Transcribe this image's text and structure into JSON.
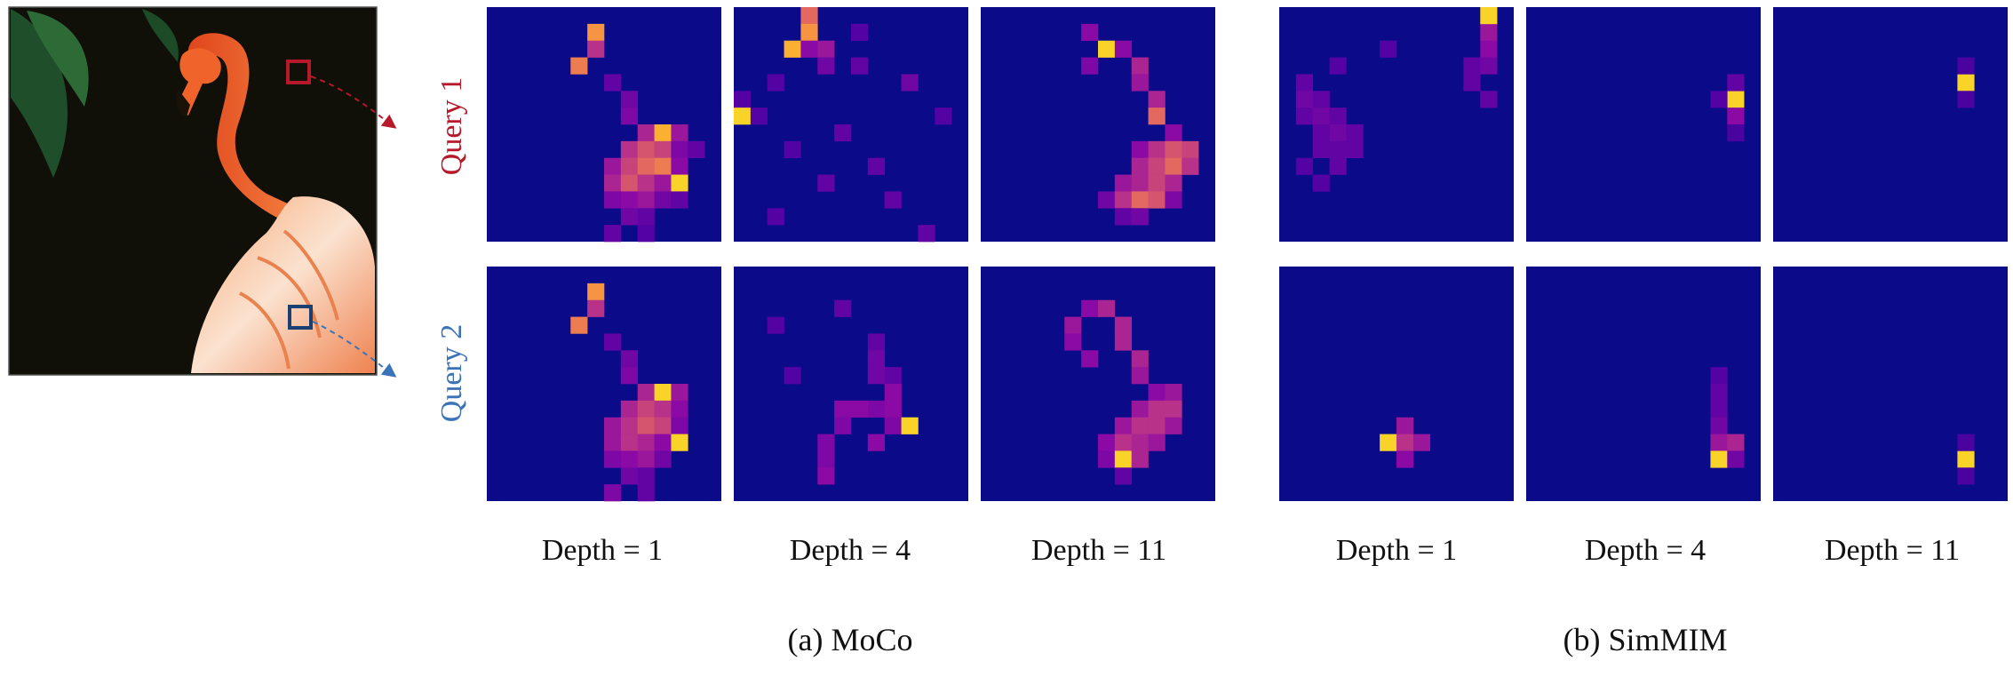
{
  "colors": {
    "query1": "#b5192a",
    "query2": "#3a73b8",
    "map_background": "#0b0b8a"
  },
  "row_labels": [
    "Query 1",
    "Query 2"
  ],
  "groups": [
    {
      "caption": "(a) MoCo",
      "columns": [
        {
          "label": "Depth = 1"
        },
        {
          "label": "Depth = 4"
        },
        {
          "label": "Depth = 11"
        }
      ]
    },
    {
      "caption": "(b) SimMIM",
      "columns": [
        {
          "label": "Depth = 1"
        },
        {
          "label": "Depth = 4"
        },
        {
          "label": "Depth = 11"
        }
      ]
    }
  ],
  "chart_data": {
    "type": "heatmap",
    "grid": [
      14,
      14
    ],
    "colormap": "plasma",
    "rows": [
      "Query 1",
      "Query 2"
    ],
    "methods": [
      "(a) MoCo",
      "(b) SimMIM"
    ],
    "depths": [
      "Depth = 1",
      "Depth = 4",
      "Depth = 11"
    ],
    "maps": [
      [
        [
          {
            "r": 1,
            "c": 6,
            "v": 0.85
          },
          {
            "r": 2,
            "c": 6,
            "v": 0.6
          },
          {
            "r": 3,
            "c": 5,
            "v": 0.8
          },
          {
            "r": 4,
            "c": 7,
            "v": 0.3
          },
          {
            "r": 5,
            "c": 8,
            "v": 0.35
          },
          {
            "r": 6,
            "c": 8,
            "v": 0.4
          },
          {
            "r": 7,
            "c": 9,
            "v": 0.55
          },
          {
            "r": 7,
            "c": 10,
            "v": 0.9
          },
          {
            "r": 7,
            "c": 11,
            "v": 0.5
          },
          {
            "r": 8,
            "c": 8,
            "v": 0.6
          },
          {
            "r": 8,
            "c": 9,
            "v": 0.7
          },
          {
            "r": 8,
            "c": 10,
            "v": 0.65
          },
          {
            "r": 8,
            "c": 11,
            "v": 0.4
          },
          {
            "r": 8,
            "c": 12,
            "v": 0.3
          },
          {
            "r": 9,
            "c": 7,
            "v": 0.5
          },
          {
            "r": 9,
            "c": 8,
            "v": 0.65
          },
          {
            "r": 9,
            "c": 9,
            "v": 0.75
          },
          {
            "r": 9,
            "c": 10,
            "v": 0.8
          },
          {
            "r": 9,
            "c": 11,
            "v": 0.45
          },
          {
            "r": 10,
            "c": 7,
            "v": 0.55
          },
          {
            "r": 10,
            "c": 8,
            "v": 0.7
          },
          {
            "r": 10,
            "c": 9,
            "v": 0.6
          },
          {
            "r": 10,
            "c": 10,
            "v": 0.5
          },
          {
            "r": 10,
            "c": 11,
            "v": 0.95
          },
          {
            "r": 11,
            "c": 7,
            "v": 0.4
          },
          {
            "r": 11,
            "c": 8,
            "v": 0.45
          },
          {
            "r": 11,
            "c": 9,
            "v": 0.5
          },
          {
            "r": 11,
            "c": 10,
            "v": 0.35
          },
          {
            "r": 11,
            "c": 11,
            "v": 0.3
          },
          {
            "r": 12,
            "c": 8,
            "v": 0.35
          },
          {
            "r": 12,
            "c": 9,
            "v": 0.3
          },
          {
            "r": 13,
            "c": 7,
            "v": 0.3
          },
          {
            "r": 13,
            "c": 9,
            "v": 0.25
          }
        ],
        [
          {
            "r": 0,
            "c": 4,
            "v": 0.75
          },
          {
            "r": 1,
            "c": 4,
            "v": 0.85
          },
          {
            "r": 2,
            "c": 3,
            "v": 0.9
          },
          {
            "r": 2,
            "c": 4,
            "v": 0.45
          },
          {
            "r": 2,
            "c": 5,
            "v": 0.5
          },
          {
            "r": 3,
            "c": 5,
            "v": 0.35
          },
          {
            "r": 3,
            "c": 7,
            "v": 0.3
          },
          {
            "r": 4,
            "c": 10,
            "v": 0.35
          },
          {
            "r": 4,
            "c": 2,
            "v": 0.25
          },
          {
            "r": 5,
            "c": 0,
            "v": 0.25
          },
          {
            "r": 6,
            "c": 0,
            "v": 0.95
          },
          {
            "r": 6,
            "c": 1,
            "v": 0.25
          },
          {
            "r": 7,
            "c": 6,
            "v": 0.3
          },
          {
            "r": 8,
            "c": 3,
            "v": 0.25
          },
          {
            "r": 9,
            "c": 8,
            "v": 0.3
          },
          {
            "r": 10,
            "c": 5,
            "v": 0.3
          },
          {
            "r": 11,
            "c": 9,
            "v": 0.3
          },
          {
            "r": 12,
            "c": 2,
            "v": 0.25
          },
          {
            "r": 13,
            "c": 11,
            "v": 0.3
          },
          {
            "r": 1,
            "c": 7,
            "v": 0.25
          },
          {
            "r": 6,
            "c": 12,
            "v": 0.25
          }
        ],
        [
          {
            "r": 1,
            "c": 6,
            "v": 0.45
          },
          {
            "r": 2,
            "c": 7,
            "v": 0.95
          },
          {
            "r": 2,
            "c": 8,
            "v": 0.45
          },
          {
            "r": 3,
            "c": 6,
            "v": 0.4
          },
          {
            "r": 3,
            "c": 9,
            "v": 0.55
          },
          {
            "r": 4,
            "c": 9,
            "v": 0.5
          },
          {
            "r": 5,
            "c": 10,
            "v": 0.55
          },
          {
            "r": 6,
            "c": 10,
            "v": 0.75
          },
          {
            "r": 7,
            "c": 11,
            "v": 0.45
          },
          {
            "r": 8,
            "c": 9,
            "v": 0.45
          },
          {
            "r": 8,
            "c": 10,
            "v": 0.6
          },
          {
            "r": 8,
            "c": 11,
            "v": 0.7
          },
          {
            "r": 8,
            "c": 12,
            "v": 0.65
          },
          {
            "r": 9,
            "c": 9,
            "v": 0.55
          },
          {
            "r": 9,
            "c": 10,
            "v": 0.65
          },
          {
            "r": 9,
            "c": 11,
            "v": 0.75
          },
          {
            "r": 9,
            "c": 12,
            "v": 0.6
          },
          {
            "r": 10,
            "c": 8,
            "v": 0.5
          },
          {
            "r": 10,
            "c": 9,
            "v": 0.55
          },
          {
            "r": 10,
            "c": 10,
            "v": 0.65
          },
          {
            "r": 10,
            "c": 11,
            "v": 0.55
          },
          {
            "r": 11,
            "c": 7,
            "v": 0.35
          },
          {
            "r": 11,
            "c": 8,
            "v": 0.6
          },
          {
            "r": 11,
            "c": 9,
            "v": 0.75
          },
          {
            "r": 11,
            "c": 10,
            "v": 0.7
          },
          {
            "r": 11,
            "c": 11,
            "v": 0.4
          },
          {
            "r": 12,
            "c": 8,
            "v": 0.3
          },
          {
            "r": 12,
            "c": 9,
            "v": 0.35
          }
        ]
      ],
      [
        [
          {
            "r": 1,
            "c": 12,
            "v": 0.5
          },
          {
            "r": 0,
            "c": 12,
            "v": 0.95
          },
          {
            "r": 2,
            "c": 12,
            "v": 0.45
          },
          {
            "r": 3,
            "c": 11,
            "v": 0.3
          },
          {
            "r": 3,
            "c": 12,
            "v": 0.35
          },
          {
            "r": 4,
            "c": 11,
            "v": 0.3
          },
          {
            "r": 5,
            "c": 12,
            "v": 0.3
          },
          {
            "r": 2,
            "c": 6,
            "v": 0.25
          },
          {
            "r": 3,
            "c": 3,
            "v": 0.25
          },
          {
            "r": 4,
            "c": 1,
            "v": 0.3
          },
          {
            "r": 5,
            "c": 1,
            "v": 0.35
          },
          {
            "r": 5,
            "c": 2,
            "v": 0.3
          },
          {
            "r": 6,
            "c": 1,
            "v": 0.3
          },
          {
            "r": 6,
            "c": 2,
            "v": 0.35
          },
          {
            "r": 6,
            "c": 3,
            "v": 0.3
          },
          {
            "r": 7,
            "c": 2,
            "v": 0.3
          },
          {
            "r": 7,
            "c": 3,
            "v": 0.35
          },
          {
            "r": 7,
            "c": 4,
            "v": 0.3
          },
          {
            "r": 8,
            "c": 2,
            "v": 0.3
          },
          {
            "r": 8,
            "c": 3,
            "v": 0.3
          },
          {
            "r": 8,
            "c": 4,
            "v": 0.3
          },
          {
            "r": 9,
            "c": 1,
            "v": 0.25
          },
          {
            "r": 9,
            "c": 3,
            "v": 0.3
          },
          {
            "r": 10,
            "c": 2,
            "v": 0.25
          }
        ],
        [
          {
            "r": 5,
            "c": 12,
            "v": 0.95
          },
          {
            "r": 6,
            "c": 12,
            "v": 0.45
          },
          {
            "r": 4,
            "c": 12,
            "v": 0.3
          },
          {
            "r": 5,
            "c": 11,
            "v": 0.25
          },
          {
            "r": 7,
            "c": 12,
            "v": 0.22
          }
        ],
        [
          {
            "r": 4,
            "c": 11,
            "v": 0.95
          },
          {
            "r": 3,
            "c": 11,
            "v": 0.22
          },
          {
            "r": 5,
            "c": 11,
            "v": 0.22
          }
        ]
      ]
    ],
    "maps_query2": [
      [
        [
          {
            "r": 1,
            "c": 6,
            "v": 0.85
          },
          {
            "r": 2,
            "c": 6,
            "v": 0.6
          },
          {
            "r": 3,
            "c": 5,
            "v": 0.8
          },
          {
            "r": 4,
            "c": 7,
            "v": 0.3
          },
          {
            "r": 5,
            "c": 8,
            "v": 0.35
          },
          {
            "r": 6,
            "c": 8,
            "v": 0.4
          },
          {
            "r": 7,
            "c": 9,
            "v": 0.55
          },
          {
            "r": 7,
            "c": 10,
            "v": 0.95
          },
          {
            "r": 7,
            "c": 11,
            "v": 0.5
          },
          {
            "r": 8,
            "c": 8,
            "v": 0.55
          },
          {
            "r": 8,
            "c": 9,
            "v": 0.65
          },
          {
            "r": 8,
            "c": 10,
            "v": 0.6
          },
          {
            "r": 8,
            "c": 11,
            "v": 0.45
          },
          {
            "r": 9,
            "c": 7,
            "v": 0.5
          },
          {
            "r": 9,
            "c": 8,
            "v": 0.6
          },
          {
            "r": 9,
            "c": 9,
            "v": 0.7
          },
          {
            "r": 9,
            "c": 10,
            "v": 0.65
          },
          {
            "r": 9,
            "c": 11,
            "v": 0.4
          },
          {
            "r": 10,
            "c": 7,
            "v": 0.5
          },
          {
            "r": 10,
            "c": 8,
            "v": 0.6
          },
          {
            "r": 10,
            "c": 9,
            "v": 0.55
          },
          {
            "r": 10,
            "c": 10,
            "v": 0.45
          },
          {
            "r": 10,
            "c": 11,
            "v": 0.95
          },
          {
            "r": 11,
            "c": 7,
            "v": 0.4
          },
          {
            "r": 11,
            "c": 8,
            "v": 0.45
          },
          {
            "r": 11,
            "c": 9,
            "v": 0.5
          },
          {
            "r": 11,
            "c": 10,
            "v": 0.35
          },
          {
            "r": 12,
            "c": 8,
            "v": 0.35
          },
          {
            "r": 12,
            "c": 9,
            "v": 0.3
          },
          {
            "r": 13,
            "c": 7,
            "v": 0.4
          },
          {
            "r": 13,
            "c": 9,
            "v": 0.3
          }
        ],
        [
          {
            "r": 2,
            "c": 6,
            "v": 0.3
          },
          {
            "r": 4,
            "c": 8,
            "v": 0.3
          },
          {
            "r": 5,
            "c": 8,
            "v": 0.35
          },
          {
            "r": 6,
            "c": 8,
            "v": 0.35
          },
          {
            "r": 6,
            "c": 9,
            "v": 0.3
          },
          {
            "r": 7,
            "c": 9,
            "v": 0.45
          },
          {
            "r": 8,
            "c": 6,
            "v": 0.45
          },
          {
            "r": 8,
            "c": 7,
            "v": 0.45
          },
          {
            "r": 8,
            "c": 8,
            "v": 0.4
          },
          {
            "r": 8,
            "c": 9,
            "v": 0.45
          },
          {
            "r": 9,
            "c": 6,
            "v": 0.4
          },
          {
            "r": 9,
            "c": 9,
            "v": 0.4
          },
          {
            "r": 9,
            "c": 10,
            "v": 0.95
          },
          {
            "r": 10,
            "c": 5,
            "v": 0.4
          },
          {
            "r": 10,
            "c": 8,
            "v": 0.45
          },
          {
            "r": 11,
            "c": 5,
            "v": 0.4
          },
          {
            "r": 12,
            "c": 5,
            "v": 0.45
          },
          {
            "r": 3,
            "c": 2,
            "v": 0.25
          },
          {
            "r": 6,
            "c": 3,
            "v": 0.25
          }
        ],
        [
          {
            "r": 2,
            "c": 6,
            "v": 0.45
          },
          {
            "r": 2,
            "c": 7,
            "v": 0.55
          },
          {
            "r": 3,
            "c": 5,
            "v": 0.5
          },
          {
            "r": 3,
            "c": 8,
            "v": 0.55
          },
          {
            "r": 4,
            "c": 5,
            "v": 0.45
          },
          {
            "r": 4,
            "c": 8,
            "v": 0.55
          },
          {
            "r": 5,
            "c": 6,
            "v": 0.45
          },
          {
            "r": 5,
            "c": 9,
            "v": 0.55
          },
          {
            "r": 6,
            "c": 9,
            "v": 0.5
          },
          {
            "r": 7,
            "c": 10,
            "v": 0.45
          },
          {
            "r": 7,
            "c": 11,
            "v": 0.5
          },
          {
            "r": 8,
            "c": 9,
            "v": 0.5
          },
          {
            "r": 8,
            "c": 10,
            "v": 0.6
          },
          {
            "r": 8,
            "c": 11,
            "v": 0.6
          },
          {
            "r": 9,
            "c": 8,
            "v": 0.5
          },
          {
            "r": 9,
            "c": 9,
            "v": 0.6
          },
          {
            "r": 9,
            "c": 10,
            "v": 0.6
          },
          {
            "r": 9,
            "c": 11,
            "v": 0.5
          },
          {
            "r": 10,
            "c": 7,
            "v": 0.45
          },
          {
            "r": 10,
            "c": 8,
            "v": 0.6
          },
          {
            "r": 10,
            "c": 9,
            "v": 0.55
          },
          {
            "r": 10,
            "c": 10,
            "v": 0.5
          },
          {
            "r": 11,
            "c": 7,
            "v": 0.4
          },
          {
            "r": 11,
            "c": 8,
            "v": 0.95
          },
          {
            "r": 11,
            "c": 9,
            "v": 0.55
          },
          {
            "r": 12,
            "c": 8,
            "v": 0.3
          }
        ]
      ],
      [
        [
          {
            "r": 9,
            "c": 7,
            "v": 0.5
          },
          {
            "r": 10,
            "c": 6,
            "v": 0.95
          },
          {
            "r": 10,
            "c": 7,
            "v": 0.6
          },
          {
            "r": 10,
            "c": 8,
            "v": 0.5
          },
          {
            "r": 11,
            "c": 7,
            "v": 0.45
          }
        ],
        [
          {
            "r": 6,
            "c": 11,
            "v": 0.25
          },
          {
            "r": 7,
            "c": 11,
            "v": 0.3
          },
          {
            "r": 8,
            "c": 11,
            "v": 0.3
          },
          {
            "r": 9,
            "c": 11,
            "v": 0.35
          },
          {
            "r": 10,
            "c": 11,
            "v": 0.5
          },
          {
            "r": 10,
            "c": 12,
            "v": 0.55
          },
          {
            "r": 11,
            "c": 11,
            "v": 0.95
          },
          {
            "r": 11,
            "c": 12,
            "v": 0.35
          }
        ],
        [
          {
            "r": 11,
            "c": 11,
            "v": 0.95
          },
          {
            "r": 10,
            "c": 11,
            "v": 0.22
          },
          {
            "r": 12,
            "c": 11,
            "v": 0.22
          }
        ]
      ]
    ]
  }
}
